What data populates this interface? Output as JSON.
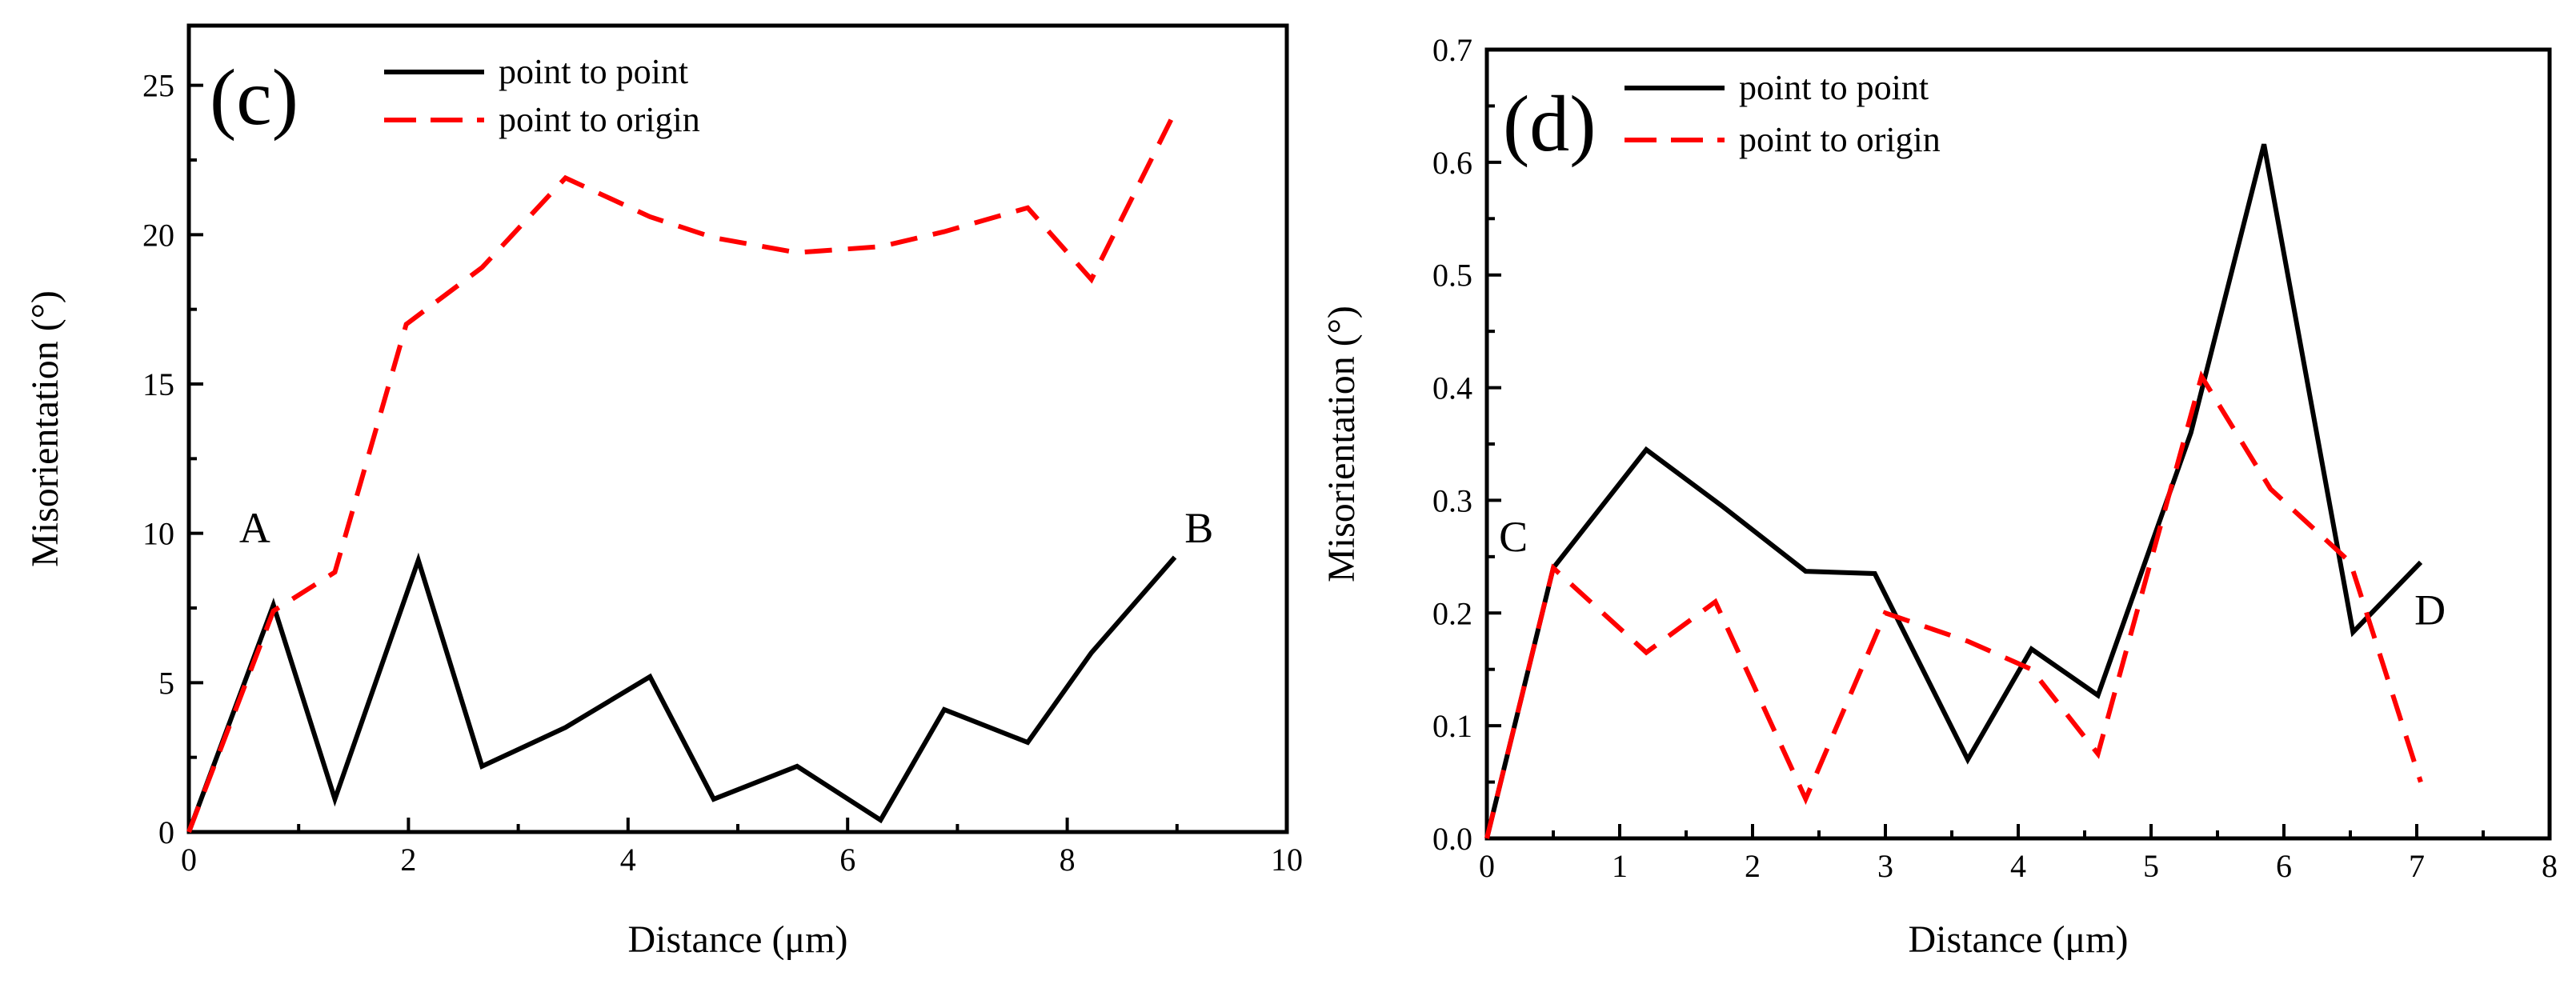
{
  "chart_data": [
    {
      "type": "line",
      "panel_label": "(c)",
      "title": "",
      "xlabel": "Distance (μm)",
      "ylabel": "Misorientation (°)",
      "xlim": [
        0,
        10
      ],
      "ylim": [
        0,
        27
      ],
      "x_ticks": [
        0,
        2,
        4,
        6,
        8,
        10
      ],
      "y_ticks": [
        0,
        5,
        10,
        15,
        20,
        25
      ],
      "x_tick_labels": [
        "0",
        "2",
        "4",
        "6",
        "8",
        "10"
      ],
      "y_tick_labels": [
        "0",
        "5",
        "10",
        "15",
        "20",
        "25"
      ],
      "legend": {
        "position": "top-center",
        "entries": [
          "point to point",
          "point to origin"
        ]
      },
      "series": [
        {
          "name": "point to point",
          "style": "solid",
          "color": "#000000",
          "x": [
            0,
            0.77,
            1.33,
            2.09,
            2.67,
            3.43,
            4.2,
            4.78,
            5.54,
            6.3,
            6.88,
            7.64,
            8.22,
            8.98
          ],
          "y": [
            0,
            7.6,
            1.1,
            9.1,
            2.2,
            3.5,
            5.2,
            1.1,
            2.2,
            0.4,
            4.1,
            3.0,
            6.0,
            9.2
          ]
        },
        {
          "name": "point to origin",
          "style": "dashed",
          "color": "#ff0000",
          "x": [
            0,
            0.77,
            1.33,
            1.98,
            2.67,
            3.43,
            4.2,
            4.78,
            5.54,
            6.3,
            6.88,
            7.64,
            8.22,
            8.98
          ],
          "y": [
            0,
            7.4,
            8.7,
            17.0,
            18.9,
            21.9,
            20.6,
            19.9,
            19.4,
            19.6,
            20.1,
            20.9,
            18.5,
            24.1
          ]
        }
      ],
      "annotations": [
        {
          "text": "A",
          "x": 0.6,
          "y": 9.7
        },
        {
          "text": "B",
          "x": 9.2,
          "y": 9.7
        }
      ]
    },
    {
      "type": "line",
      "panel_label": "(d)",
      "title": "",
      "xlabel": "Distance (μm)",
      "ylabel": "Misorientation (°)",
      "xlim": [
        0,
        8
      ],
      "ylim": [
        0,
        0.7
      ],
      "x_ticks": [
        0,
        1,
        2,
        3,
        4,
        5,
        6,
        7,
        8
      ],
      "y_ticks": [
        0,
        0.1,
        0.2,
        0.3,
        0.4,
        0.5,
        0.6,
        0.7
      ],
      "x_tick_labels": [
        "0",
        "1",
        "2",
        "3",
        "4",
        "5",
        "6",
        "7",
        "8"
      ],
      "y_tick_labels": [
        "0.0",
        "0.1",
        "0.2",
        "0.3",
        "0.4",
        "0.5",
        "0.6",
        "0.7"
      ],
      "legend": {
        "position": "top-left",
        "entries": [
          "point to point",
          "point to origin"
        ]
      },
      "series": [
        {
          "name": "point to point",
          "style": "solid",
          "color": "#000000",
          "x": [
            0,
            0.5,
            1.2,
            1.77,
            2.4,
            2.92,
            3.62,
            4.1,
            4.6,
            5.3,
            5.85,
            6.52,
            7.03
          ],
          "y": [
            0,
            0.24,
            0.345,
            0.295,
            0.237,
            0.235,
            0.07,
            0.168,
            0.127,
            0.36,
            0.616,
            0.183,
            0.245
          ]
        },
        {
          "name": "point to origin",
          "style": "dashed",
          "color": "#ff0000",
          "x": [
            0,
            0.5,
            1.2,
            1.72,
            2.4,
            3.0,
            3.62,
            4.1,
            4.6,
            5.38,
            5.9,
            6.5,
            7.03
          ],
          "y": [
            0,
            0.24,
            0.165,
            0.21,
            0.035,
            0.2,
            0.175,
            0.15,
            0.075,
            0.41,
            0.31,
            0.245,
            0.05
          ]
        }
      ],
      "annotations": [
        {
          "text": "C",
          "x": 0.2,
          "y": 0.255
        },
        {
          "text": "D",
          "x": 7.1,
          "y": 0.19
        }
      ]
    }
  ]
}
